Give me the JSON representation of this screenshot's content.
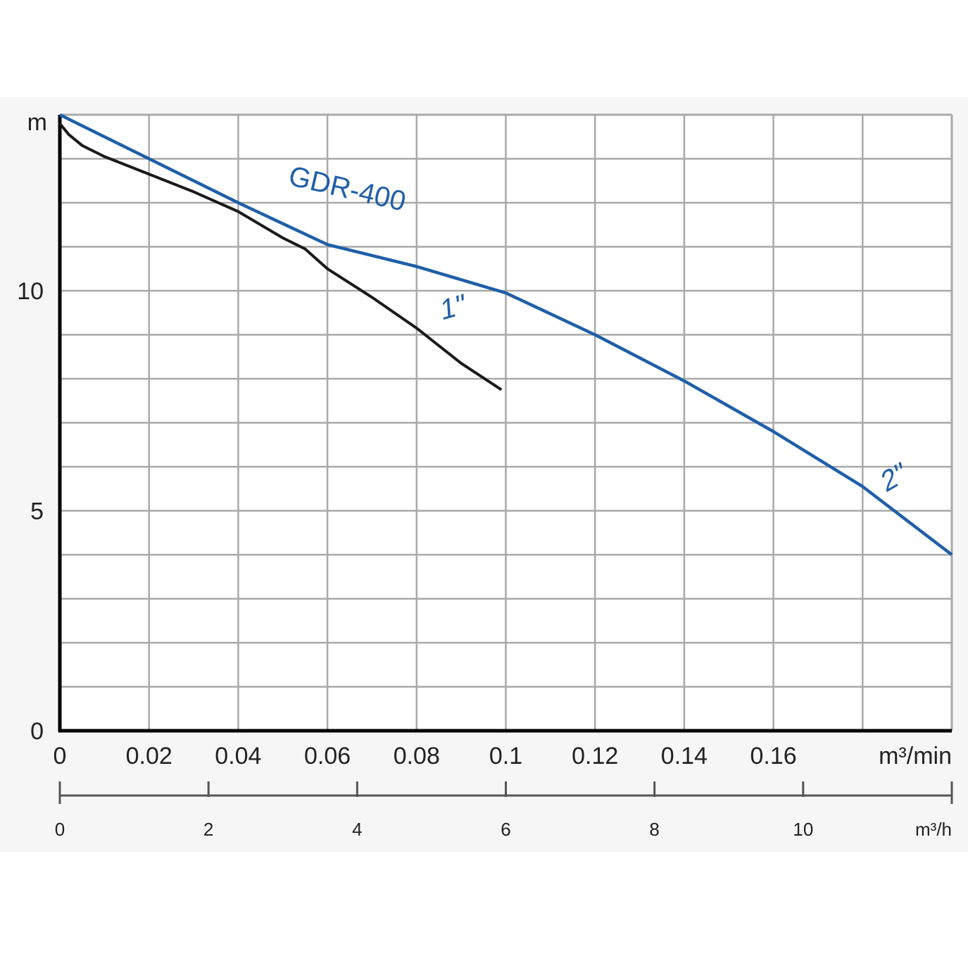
{
  "chart_data": {
    "type": "line",
    "title": "",
    "ylabel": "m",
    "xlabel": "m³/min",
    "x2label": "m³/h",
    "xlim": [
      0,
      0.2
    ],
    "ylim": [
      0,
      14
    ],
    "x2lim": [
      0,
      12
    ],
    "x_ticks": [
      0,
      0.02,
      0.04,
      0.06,
      0.08,
      0.1,
      0.12,
      0.14,
      0.16
    ],
    "x_tick_labels": [
      "0",
      "0.02",
      "0.04",
      "0.06",
      "0.08",
      "0.1",
      "0.12",
      "0.14",
      "0.16"
    ],
    "y_ticks": [
      0,
      5,
      10
    ],
    "y_tick_labels": [
      "0",
      "5",
      "10"
    ],
    "x2_ticks": [
      0,
      2,
      4,
      6,
      8,
      10
    ],
    "x2_tick_labels": [
      "0",
      "2",
      "4",
      "6",
      "8",
      "10"
    ],
    "grid": true,
    "grid_x_step": 0.02,
    "grid_y_step": 1,
    "annotation": "GDR-400",
    "series": [
      {
        "name": "2\"",
        "color": "#1f5fa8",
        "x": [
          0,
          0.02,
          0.04,
          0.06,
          0.08,
          0.1,
          0.12,
          0.14,
          0.16,
          0.18,
          0.2
        ],
        "y": [
          14.0,
          13.0,
          12.0,
          11.05,
          10.55,
          9.95,
          9.0,
          7.95,
          6.8,
          5.55,
          4.0
        ]
      },
      {
        "name": "1\"",
        "color": "#1a1a1a",
        "x": [
          0,
          0.002,
          0.005,
          0.01,
          0.02,
          0.03,
          0.04,
          0.05,
          0.055,
          0.06,
          0.07,
          0.08,
          0.09,
          0.099
        ],
        "y": [
          13.8,
          13.55,
          13.3,
          13.05,
          12.65,
          12.25,
          11.8,
          11.2,
          10.95,
          10.5,
          9.85,
          9.15,
          8.35,
          7.75
        ]
      }
    ]
  }
}
